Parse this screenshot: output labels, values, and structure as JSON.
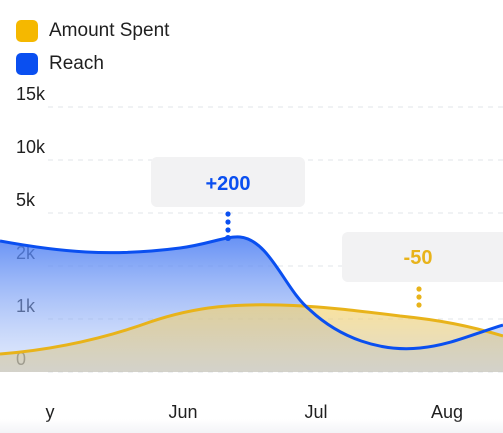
{
  "colors": {
    "amount_spent": "#F5B800",
    "reach": "#0A4FF0",
    "grid": "#E2E4E8",
    "callout_bg": "#F2F2F3"
  },
  "chart_data": {
    "type": "area",
    "legend": [
      {
        "name": "Amount Spent",
        "color": "#F5B800"
      },
      {
        "name": "Reach",
        "color": "#0A4FF0"
      }
    ],
    "legend_position": "top-left",
    "y_ticks": [
      "15k",
      "10k",
      "5k",
      "2k",
      "1k",
      "0"
    ],
    "x_ticks": [
      "y",
      "Jun",
      "Jul",
      "Aug"
    ],
    "grid": true,
    "series": [
      {
        "name": "Reach",
        "values": [
          2300,
          2200,
          2400,
          700,
          300
        ]
      },
      {
        "name": "Amount Spent",
        "values": [
          500,
          1100,
          1000,
          900,
          500
        ]
      }
    ],
    "annotations": [
      {
        "text": "+200",
        "series": "Reach"
      },
      {
        "text": "-50",
        "series": "Amount Spent"
      }
    ]
  }
}
